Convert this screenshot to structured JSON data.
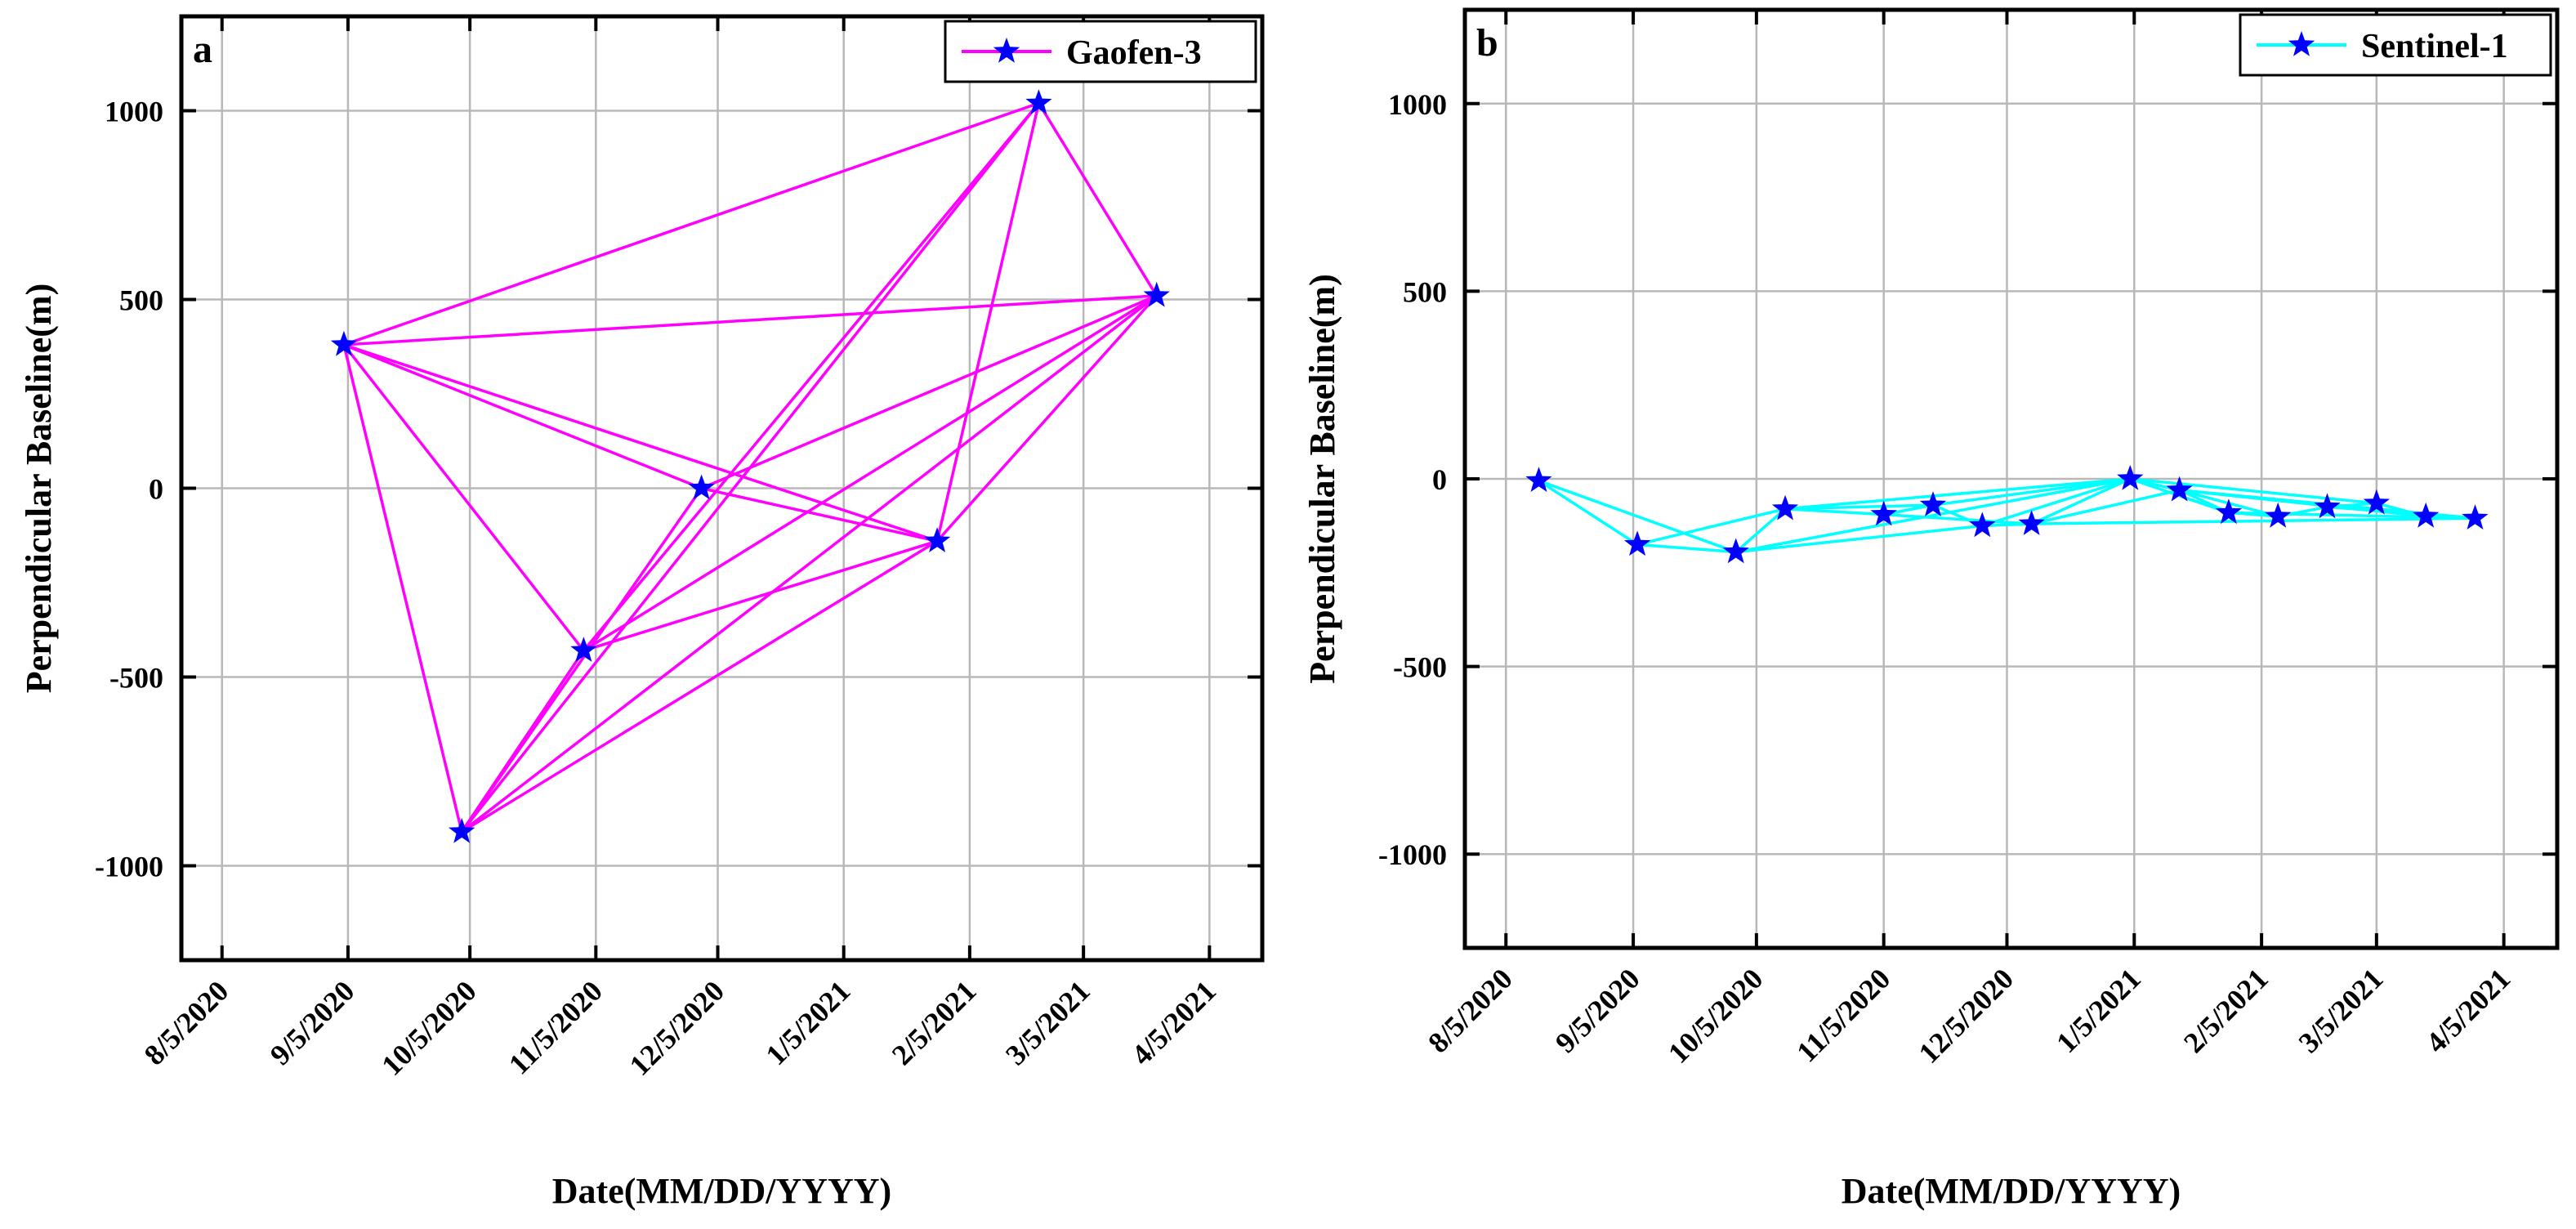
{
  "chart_data": [
    {
      "panel": "a",
      "type": "line",
      "title": "",
      "xlabel": "Date(MM/DD/YYYY)",
      "ylabel": "Perpendicular Baseline(m)",
      "ylim": [
        -1250,
        1250
      ],
      "yticks": [
        -1000,
        -500,
        0,
        500,
        1000
      ],
      "xlim_days": [
        -10,
        256
      ],
      "x_ticks": [
        "8/5/2020",
        "9/5/2020",
        "10/5/2020",
        "11/5/2020",
        "12/5/2020",
        "1/5/2021",
        "2/5/2021",
        "3/5/2021",
        "4/5/2021"
      ],
      "x_tick_days": [
        0,
        31,
        61,
        92,
        122,
        153,
        184,
        212,
        243
      ],
      "grid": true,
      "legend": {
        "label": "Gaofen-3",
        "position": "top-right"
      },
      "line_color": "#ff00ff",
      "marker_color": "#0000ff",
      "points": [
        {
          "id": "A",
          "day": 30,
          "value": 380
        },
        {
          "id": "B",
          "day": 59,
          "value": -910
        },
        {
          "id": "C",
          "day": 89,
          "value": -430
        },
        {
          "id": "D",
          "day": 118,
          "value": 0
        },
        {
          "id": "E",
          "day": 176,
          "value": -140
        },
        {
          "id": "F",
          "day": 201,
          "value": 1020
        },
        {
          "id": "G",
          "day": 230,
          "value": 510
        }
      ],
      "connections": [
        [
          "A",
          "F"
        ],
        [
          "A",
          "G"
        ],
        [
          "A",
          "B"
        ],
        [
          "A",
          "C"
        ],
        [
          "A",
          "D"
        ],
        [
          "A",
          "E"
        ],
        [
          "B",
          "F"
        ],
        [
          "B",
          "G"
        ],
        [
          "B",
          "E"
        ],
        [
          "B",
          "D"
        ],
        [
          "B",
          "C"
        ],
        [
          "C",
          "F"
        ],
        [
          "C",
          "G"
        ],
        [
          "C",
          "E"
        ],
        [
          "D",
          "E"
        ],
        [
          "D",
          "G"
        ],
        [
          "E",
          "F"
        ],
        [
          "E",
          "G"
        ],
        [
          "F",
          "G"
        ]
      ]
    },
    {
      "panel": "b",
      "type": "line",
      "title": "",
      "xlabel": "Date(MM/DD/YYYY)",
      "ylabel": "Perpendicular Baseline(m)",
      "ylim": [
        -1250,
        1250
      ],
      "yticks": [
        -1000,
        -500,
        0,
        500,
        1000
      ],
      "xlim_days": [
        -10,
        256
      ],
      "x_ticks": [
        "8/5/2020",
        "9/5/2020",
        "10/5/2020",
        "11/5/2020",
        "12/5/2020",
        "1/5/2021",
        "2/5/2021",
        "3/5/2021",
        "4/5/2021"
      ],
      "x_tick_days": [
        0,
        31,
        61,
        92,
        122,
        153,
        184,
        212,
        243
      ],
      "grid": true,
      "legend": {
        "label": "Sentinel-1",
        "position": "top-right"
      },
      "line_color": "#00ffff",
      "marker_color": "#0000ff",
      "points": [
        {
          "id": "s1",
          "day": 8,
          "value": -5
        },
        {
          "id": "s2",
          "day": 32,
          "value": -175
        },
        {
          "id": "s3",
          "day": 56,
          "value": -195
        },
        {
          "id": "s4",
          "day": 68,
          "value": -80
        },
        {
          "id": "s5",
          "day": 92,
          "value": -95
        },
        {
          "id": "s6",
          "day": 104,
          "value": -70
        },
        {
          "id": "s7",
          "day": 116,
          "value": -125
        },
        {
          "id": "s8",
          "day": 128,
          "value": -120
        },
        {
          "id": "s9",
          "day": 152,
          "value": 0
        },
        {
          "id": "s10",
          "day": 164,
          "value": -30
        },
        {
          "id": "s11",
          "day": 176,
          "value": -90
        },
        {
          "id": "s12",
          "day": 188,
          "value": -100
        },
        {
          "id": "s13",
          "day": 200,
          "value": -75
        },
        {
          "id": "s14",
          "day": 212,
          "value": -65
        },
        {
          "id": "s15",
          "day": 224,
          "value": -100
        },
        {
          "id": "s16",
          "day": 236,
          "value": -105
        }
      ],
      "connections": [
        [
          "s1",
          "s2"
        ],
        [
          "s1",
          "s3"
        ],
        [
          "s2",
          "s3"
        ],
        [
          "s2",
          "s4"
        ],
        [
          "s3",
          "s4"
        ],
        [
          "s3",
          "s7"
        ],
        [
          "s3",
          "s9"
        ],
        [
          "s4",
          "s5"
        ],
        [
          "s4",
          "s6"
        ],
        [
          "s4",
          "s9"
        ],
        [
          "s5",
          "s6"
        ],
        [
          "s5",
          "s8"
        ],
        [
          "s6",
          "s7"
        ],
        [
          "s6",
          "s9"
        ],
        [
          "s7",
          "s8"
        ],
        [
          "s7",
          "s9"
        ],
        [
          "s8",
          "s9"
        ],
        [
          "s8",
          "s10"
        ],
        [
          "s8",
          "s16"
        ],
        [
          "s9",
          "s10"
        ],
        [
          "s9",
          "s11"
        ],
        [
          "s9",
          "s14"
        ],
        [
          "s10",
          "s11"
        ],
        [
          "s10",
          "s12"
        ],
        [
          "s10",
          "s15"
        ],
        [
          "s11",
          "s12"
        ],
        [
          "s11",
          "s16"
        ],
        [
          "s12",
          "s13"
        ],
        [
          "s13",
          "s14"
        ],
        [
          "s13",
          "s16"
        ],
        [
          "s14",
          "s15"
        ],
        [
          "s15",
          "s16"
        ],
        [
          "s10",
          "s16"
        ]
      ]
    }
  ]
}
